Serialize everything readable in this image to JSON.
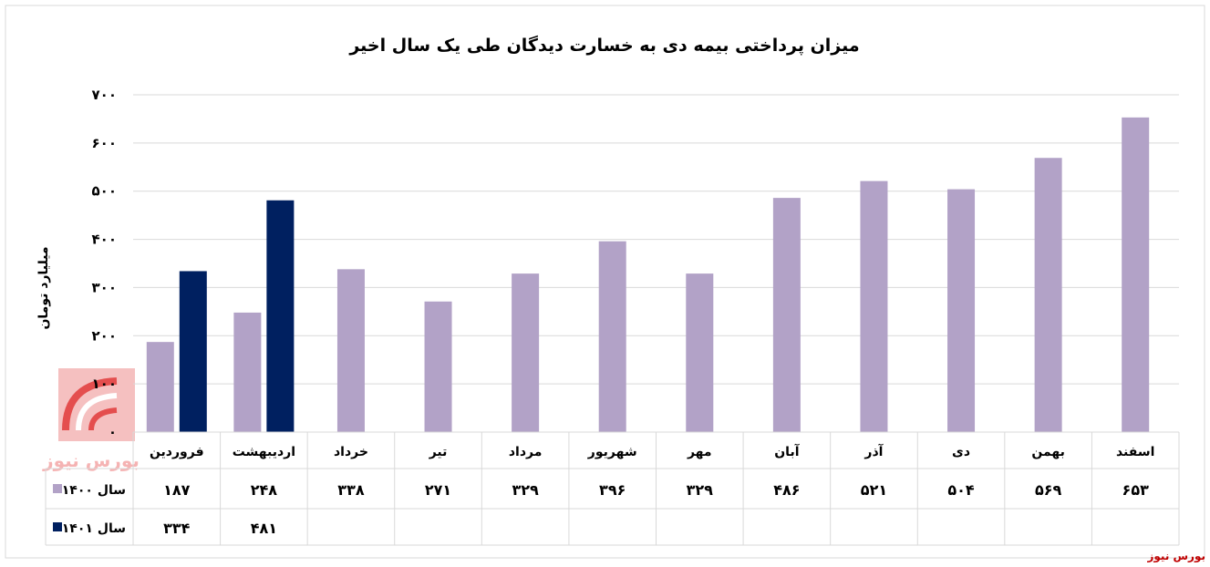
{
  "chart_data": {
    "type": "bar",
    "title": "میزان پرداختی بیمه دی به خسارت دیدگان طی یک سال اخیر",
    "ylabel": "میلیارد تومان",
    "ylim": [
      0,
      700
    ],
    "yticks": [
      "۰",
      "۱۰۰",
      "۲۰۰",
      "۳۰۰",
      "۴۰۰",
      "۵۰۰",
      "۶۰۰",
      "۷۰۰"
    ],
    "ytick_values": [
      0,
      100,
      200,
      300,
      400,
      500,
      600,
      700
    ],
    "categories": [
      "فروردین",
      "اردیبهشت",
      "خرداد",
      "تیر",
      "مرداد",
      "شهریور",
      "مهر",
      "آبان",
      "آذر",
      "دی",
      "بهمن",
      "اسفند"
    ],
    "grid": true,
    "legend": "data-table",
    "series": [
      {
        "name": "سال ۱۴۰۰",
        "color": "#b2a2c7",
        "values": [
          187,
          248,
          338,
          271,
          329,
          396,
          329,
          486,
          521,
          504,
          569,
          653
        ],
        "labels": [
          "۱۸۷",
          "۲۴۸",
          "۳۳۸",
          "۲۷۱",
          "۳۲۹",
          "۳۹۶",
          "۳۲۹",
          "۴۸۶",
          "۵۲۱",
          "۵۰۴",
          "۵۶۹",
          "۶۵۳"
        ]
      },
      {
        "name": "سال ۱۴۰۱",
        "color": "#002060",
        "values": [
          334,
          481,
          null,
          null,
          null,
          null,
          null,
          null,
          null,
          null,
          null,
          null
        ],
        "labels": [
          "۳۳۴",
          "۴۸۱",
          "",
          "",
          "",
          "",
          "",
          "",
          "",
          "",
          "",
          ""
        ]
      }
    ]
  },
  "source": "بورس نیوز"
}
